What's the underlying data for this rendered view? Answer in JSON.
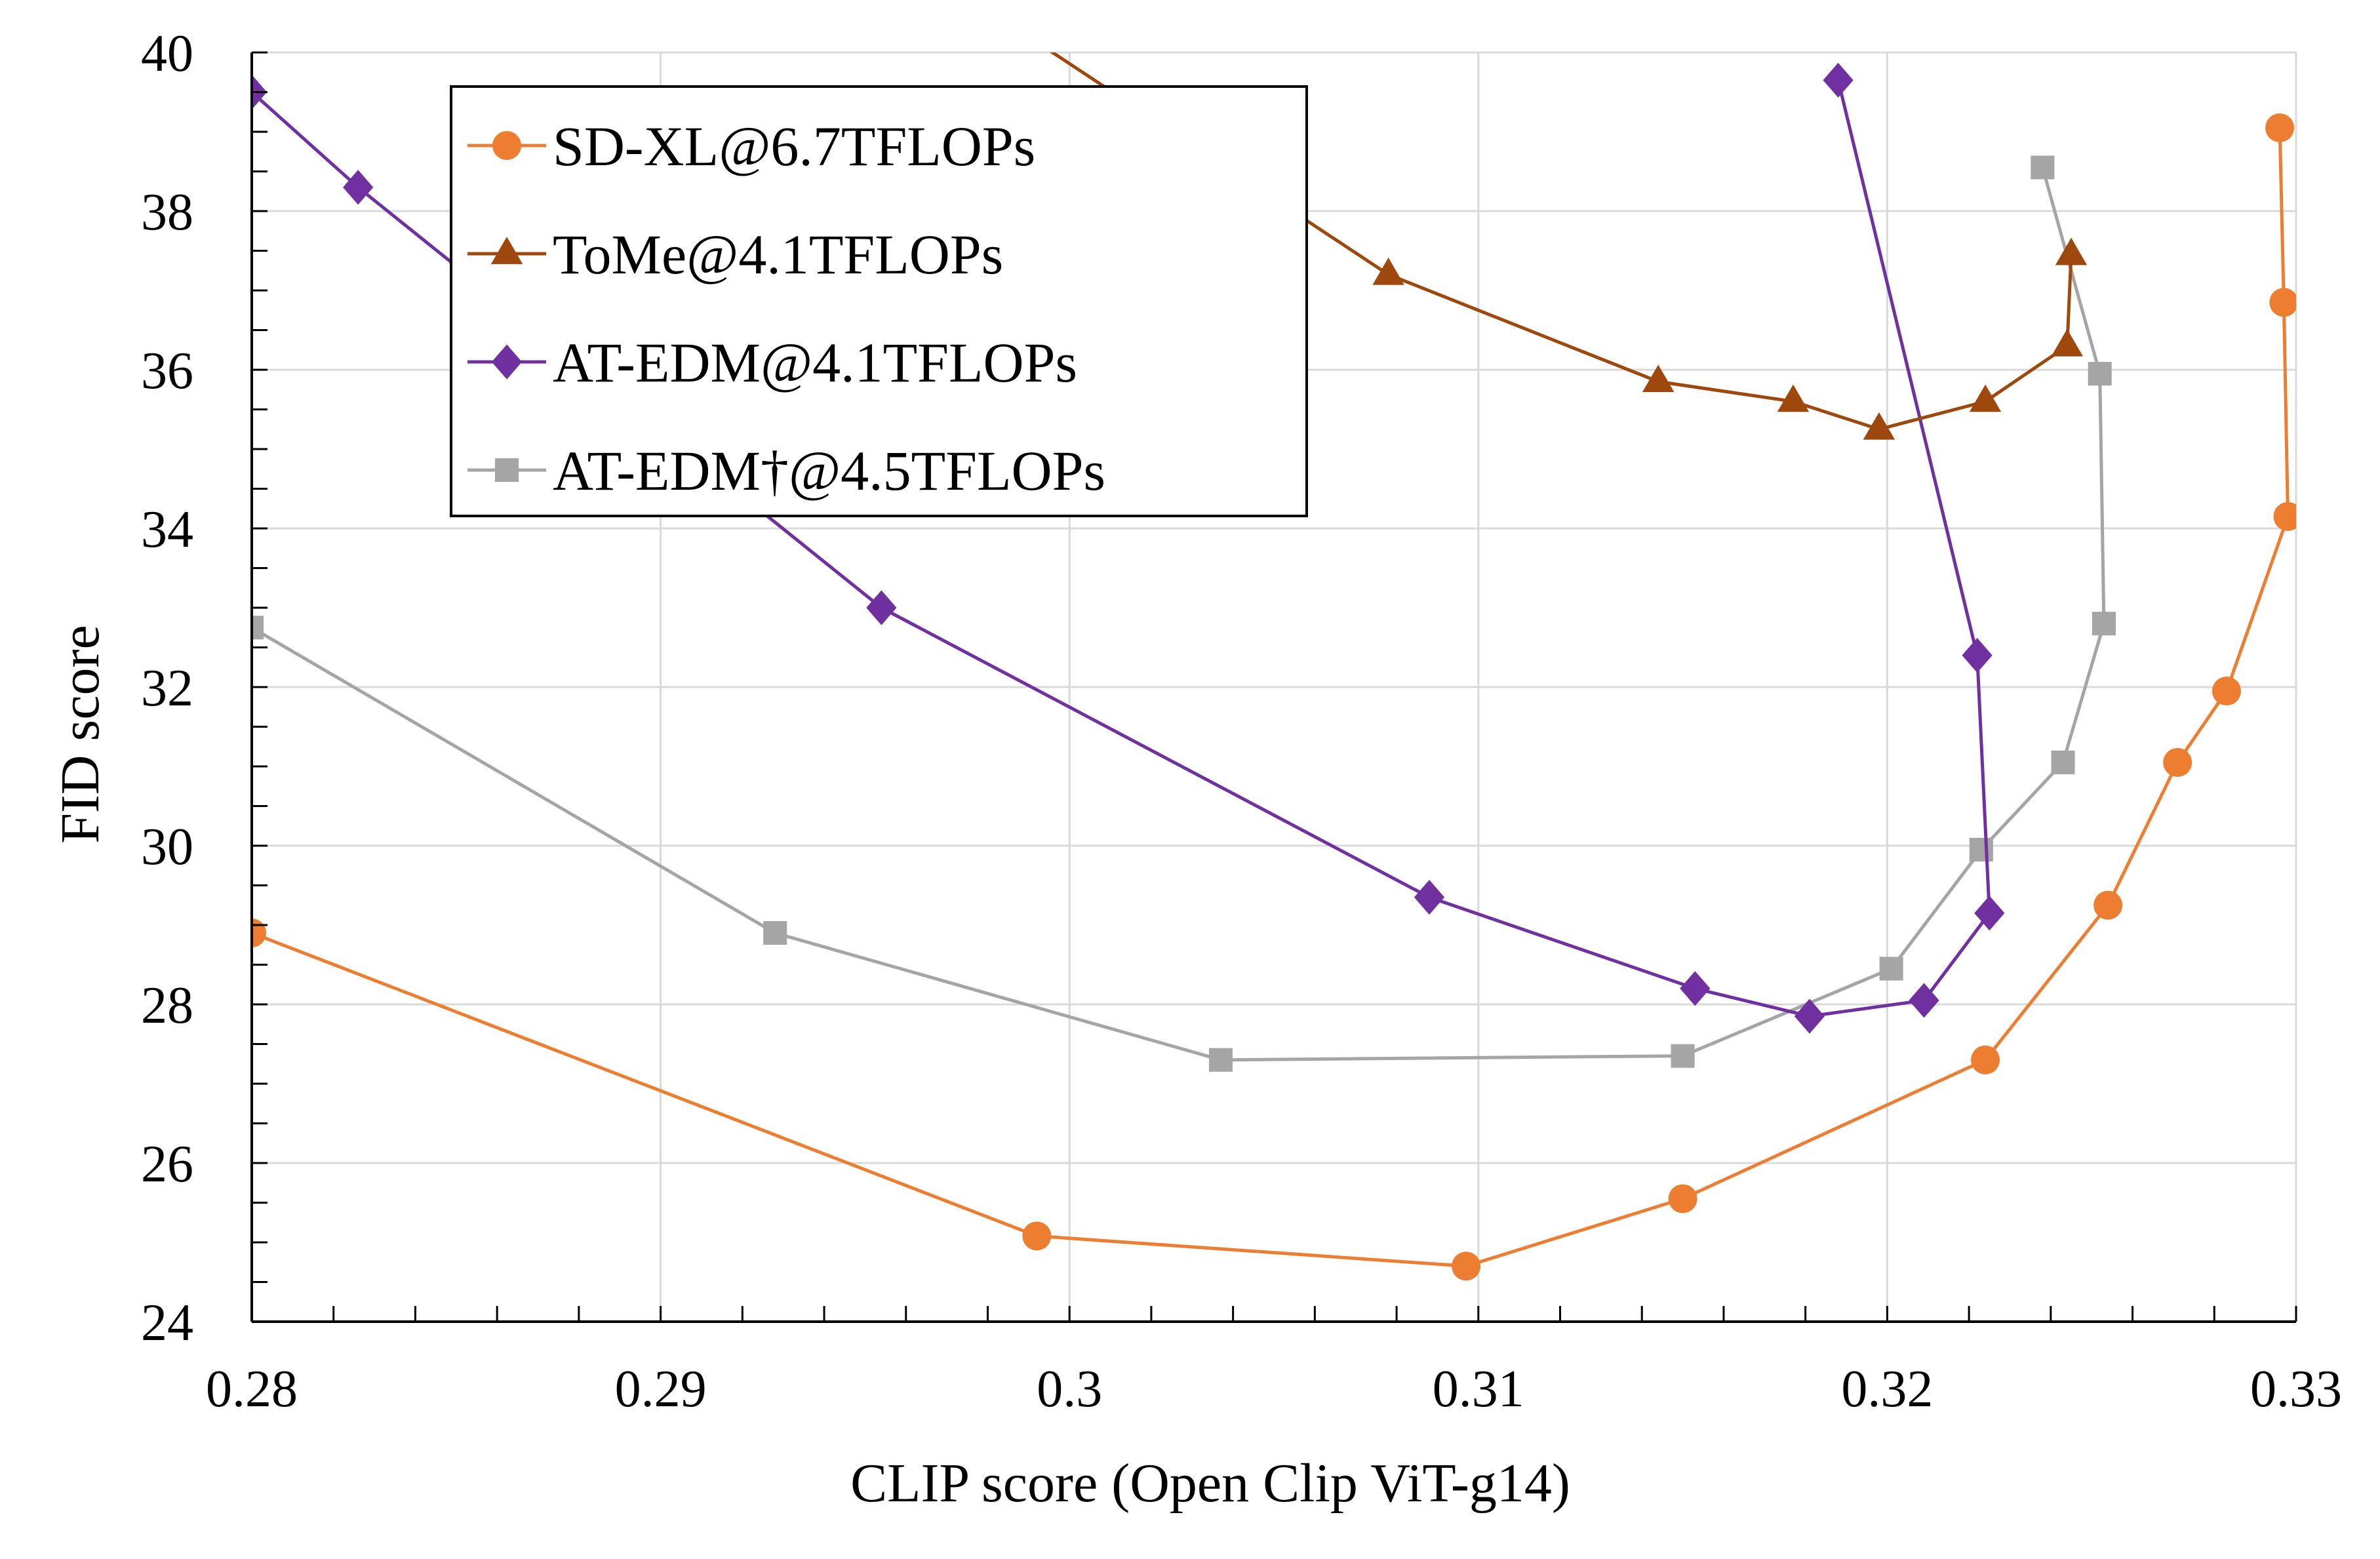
{
  "chart_data": {
    "type": "line",
    "xlabel": "CLIP score (Open Clip ViT-g14)",
    "ylabel": "FID score",
    "xlim": [
      0.28,
      0.33
    ],
    "ylim": [
      24,
      40
    ],
    "xticks": [
      "0.28",
      "0.29",
      "0.3",
      "0.31",
      "0.32",
      "0.33"
    ],
    "yticks": [
      "24",
      "26",
      "28",
      "30",
      "32",
      "34",
      "36",
      "38",
      "40"
    ],
    "grid": true,
    "legend_position": "top-left",
    "series": [
      {
        "name": "SD-XL@6.7TFLOPs",
        "color": "#ED7D31",
        "marker": "circle",
        "points": [
          [
            0.28,
            28.9
          ],
          [
            0.2992,
            25.08
          ],
          [
            0.3097,
            24.7
          ],
          [
            0.315,
            25.55
          ],
          [
            0.3224,
            27.3
          ],
          [
            0.3254,
            29.25
          ],
          [
            0.3271,
            31.05
          ],
          [
            0.3283,
            31.95
          ],
          [
            0.3298,
            34.15
          ],
          [
            0.3297,
            36.85
          ],
          [
            0.3296,
            39.05
          ]
        ]
      },
      {
        "name": "ToMe@4.1TFLOPs",
        "color": "#9E480E",
        "marker": "triangle",
        "points": [
          [
            0.299,
            40.2
          ],
          [
            0.3078,
            37.2
          ],
          [
            0.3144,
            35.85
          ],
          [
            0.3177,
            35.6
          ],
          [
            0.3198,
            35.25
          ],
          [
            0.3224,
            35.6
          ],
          [
            0.3244,
            36.3
          ],
          [
            0.3245,
            37.45
          ]
        ]
      },
      {
        "name": "AT-EDM@4.1TFLOPs",
        "color": "#7030A0",
        "marker": "diamond",
        "points": [
          [
            0.28,
            39.5
          ],
          [
            0.2826,
            38.3
          ],
          [
            0.2954,
            33.0
          ],
          [
            0.3088,
            29.35
          ],
          [
            0.3153,
            28.2
          ],
          [
            0.3181,
            27.85
          ],
          [
            0.3209,
            28.05
          ],
          [
            0.3225,
            29.15
          ],
          [
            0.3222,
            32.4
          ],
          [
            0.3188,
            39.65
          ]
        ]
      },
      {
        "name": "AT-EDM†@4.5TFLOPs",
        "color": "#A5A5A5",
        "marker": "square",
        "points": [
          [
            0.28,
            32.75
          ],
          [
            0.2928,
            28.9
          ],
          [
            0.3037,
            27.3
          ],
          [
            0.315,
            27.35
          ],
          [
            0.3201,
            28.45
          ],
          [
            0.3223,
            29.95
          ],
          [
            0.3243,
            31.05
          ],
          [
            0.3253,
            32.8
          ],
          [
            0.3252,
            35.95
          ],
          [
            0.3238,
            38.55
          ]
        ]
      }
    ]
  }
}
